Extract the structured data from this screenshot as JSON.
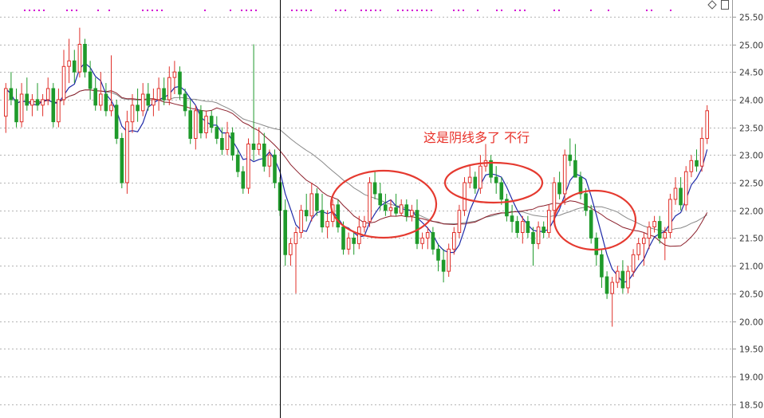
{
  "colors": {
    "up": "#e0302a",
    "down": "#1f9a2b",
    "ma_short": "#1f2aa8",
    "ma_mid": "#8b1e2a",
    "ma_long": "#888888",
    "grid": "#b4b4b4",
    "dots": "#d400d4",
    "circle": "#e53a30",
    "crosshair": "#000000"
  },
  "annotation": {
    "text": "这是阴线多了  不行"
  },
  "icons": {
    "top_right": [
      "diamond-icon",
      "page-icon"
    ]
  },
  "chart_data": {
    "type": "candlestick",
    "title": "",
    "ylim": [
      18.25,
      25.8
    ],
    "y_ticks": [
      "25.50",
      "25.00",
      "24.50",
      "24.00",
      "23.50",
      "23.00",
      "22.50",
      "22.00",
      "21.50",
      "21.00",
      "20.50",
      "20.00",
      "19.50",
      "19.00",
      "18.50"
    ],
    "grid": "dotted-horizontal",
    "crosshair_index": 52,
    "candles": [
      [
        23.7,
        24.3,
        23.4,
        24.2
      ],
      [
        24.2,
        24.5,
        23.9,
        24.0
      ],
      [
        24.0,
        24.2,
        23.5,
        23.6
      ],
      [
        23.6,
        24.3,
        23.5,
        24.1
      ],
      [
        24.1,
        24.4,
        23.8,
        23.9
      ],
      [
        23.9,
        24.1,
        23.7,
        24.0
      ],
      [
        24.0,
        24.3,
        23.8,
        23.9
      ],
      [
        23.9,
        24.1,
        23.7,
        24.0
      ],
      [
        24.0,
        24.4,
        23.9,
        24.2
      ],
      [
        24.2,
        24.3,
        23.5,
        23.6
      ],
      [
        23.6,
        24.2,
        23.5,
        24.0
      ],
      [
        24.0,
        24.9,
        23.9,
        24.6
      ],
      [
        24.6,
        25.1,
        24.3,
        24.7
      ],
      [
        24.7,
        24.9,
        24.3,
        24.5
      ],
      [
        24.5,
        25.3,
        24.4,
        25.0
      ],
      [
        25.0,
        25.1,
        24.4,
        24.5
      ],
      [
        24.5,
        24.7,
        24.0,
        24.2
      ],
      [
        24.2,
        24.4,
        23.8,
        23.9
      ],
      [
        23.9,
        24.5,
        23.8,
        24.1
      ],
      [
        24.1,
        24.3,
        23.7,
        23.8
      ],
      [
        23.8,
        24.8,
        23.7,
        23.9
      ],
      [
        23.9,
        24.0,
        23.2,
        23.3
      ],
      [
        23.3,
        23.4,
        22.4,
        22.5
      ],
      [
        22.5,
        23.8,
        22.3,
        23.6
      ],
      [
        23.6,
        24.1,
        23.4,
        23.9
      ],
      [
        23.9,
        24.2,
        23.6,
        23.8
      ],
      [
        23.8,
        24.3,
        23.7,
        24.1
      ],
      [
        24.1,
        24.3,
        23.8,
        23.9
      ],
      [
        23.9,
        24.2,
        23.7,
        24.0
      ],
      [
        24.0,
        24.4,
        23.8,
        24.2
      ],
      [
        24.2,
        24.4,
        23.9,
        24.0
      ],
      [
        24.0,
        24.6,
        23.9,
        24.4
      ],
      [
        24.4,
        24.7,
        24.1,
        24.5
      ],
      [
        24.5,
        24.6,
        24.0,
        24.1
      ],
      [
        24.1,
        24.2,
        23.7,
        23.8
      ],
      [
        23.8,
        24.0,
        23.2,
        23.3
      ],
      [
        23.3,
        23.9,
        23.1,
        23.8
      ],
      [
        23.8,
        23.9,
        23.3,
        23.4
      ],
      [
        23.4,
        23.8,
        23.3,
        23.7
      ],
      [
        23.7,
        23.8,
        23.4,
        23.5
      ],
      [
        23.5,
        23.7,
        23.2,
        23.3
      ],
      [
        23.3,
        23.5,
        23.0,
        23.1
      ],
      [
        23.1,
        23.6,
        23.0,
        23.4
      ],
      [
        23.4,
        23.5,
        22.9,
        23.0
      ],
      [
        23.0,
        23.1,
        22.6,
        22.7
      ],
      [
        22.7,
        22.8,
        22.3,
        22.4
      ],
      [
        22.4,
        23.3,
        22.3,
        23.2
      ],
      [
        23.2,
        25.0,
        22.9,
        23.1
      ],
      [
        23.1,
        23.5,
        23.0,
        23.2
      ],
      [
        23.2,
        23.4,
        22.7,
        22.8
      ],
      [
        22.8,
        23.1,
        22.6,
        23.0
      ],
      [
        23.0,
        23.1,
        22.4,
        22.5
      ],
      [
        22.5,
        22.6,
        21.9,
        22.0
      ],
      [
        22.0,
        22.2,
        21.0,
        21.2
      ],
      [
        21.2,
        21.5,
        21.0,
        21.4
      ],
      [
        21.4,
        21.7,
        20.5,
        21.6
      ],
      [
        21.6,
        22.1,
        21.5,
        22.0
      ],
      [
        22.0,
        22.3,
        21.8,
        21.9
      ],
      [
        21.9,
        22.5,
        21.8,
        22.3
      ],
      [
        22.3,
        22.4,
        21.9,
        22.0
      ],
      [
        22.0,
        22.3,
        21.6,
        21.7
      ],
      [
        21.7,
        22.0,
        21.5,
        21.8
      ],
      [
        21.8,
        22.2,
        21.7,
        22.1
      ],
      [
        22.1,
        22.2,
        21.6,
        21.7
      ],
      [
        21.7,
        21.8,
        21.2,
        21.3
      ],
      [
        21.3,
        21.6,
        21.2,
        21.5
      ],
      [
        21.5,
        21.6,
        21.2,
        21.4
      ],
      [
        21.4,
        21.9,
        21.3,
        21.7
      ],
      [
        21.7,
        21.9,
        21.6,
        21.8
      ],
      [
        21.8,
        22.6,
        21.7,
        22.5
      ],
      [
        22.5,
        22.7,
        22.2,
        22.3
      ],
      [
        22.3,
        22.5,
        22.0,
        22.1
      ],
      [
        22.1,
        22.3,
        21.9,
        22.0
      ],
      [
        22.0,
        22.2,
        21.9,
        22.05
      ],
      [
        22.05,
        22.3,
        21.9,
        21.95
      ],
      [
        21.95,
        22.2,
        21.9,
        22.1
      ],
      [
        22.1,
        22.2,
        21.8,
        21.9
      ],
      [
        21.9,
        22.1,
        21.8,
        22.0
      ],
      [
        22.0,
        22.2,
        21.3,
        21.4
      ],
      [
        21.4,
        21.6,
        21.3,
        21.5
      ],
      [
        21.5,
        21.7,
        21.3,
        21.6
      ],
      [
        21.6,
        21.7,
        21.2,
        21.3
      ],
      [
        21.3,
        21.4,
        20.9,
        21.1
      ],
      [
        21.1,
        21.3,
        20.7,
        20.9
      ],
      [
        20.9,
        21.4,
        20.8,
        21.3
      ],
      [
        21.3,
        21.7,
        21.2,
        21.6
      ],
      [
        21.6,
        22.1,
        21.5,
        22.0
      ],
      [
        22.0,
        22.6,
        21.9,
        22.5
      ],
      [
        22.5,
        22.8,
        22.4,
        22.6
      ],
      [
        22.6,
        22.7,
        22.3,
        22.4
      ],
      [
        22.4,
        23.0,
        22.3,
        22.8
      ],
      [
        22.8,
        23.2,
        22.7,
        22.9
      ],
      [
        22.9,
        23.0,
        22.5,
        22.6
      ],
      [
        22.6,
        22.8,
        22.3,
        22.5
      ],
      [
        22.5,
        22.6,
        22.1,
        22.2
      ],
      [
        22.2,
        22.3,
        21.8,
        21.9
      ],
      [
        21.9,
        22.1,
        21.6,
        21.8
      ],
      [
        21.8,
        21.9,
        21.5,
        21.6
      ],
      [
        21.6,
        21.9,
        21.4,
        21.8
      ],
      [
        21.8,
        21.9,
        21.5,
        21.6
      ],
      [
        21.6,
        21.7,
        21.0,
        21.4
      ],
      [
        21.4,
        21.8,
        21.3,
        21.7
      ],
      [
        21.7,
        21.8,
        21.5,
        21.6
      ],
      [
        21.6,
        22.1,
        21.5,
        22.0
      ],
      [
        22.0,
        22.6,
        21.9,
        22.5
      ],
      [
        22.5,
        22.7,
        22.2,
        22.3
      ],
      [
        22.3,
        23.1,
        22.1,
        23.0
      ],
      [
        23.0,
        23.3,
        22.8,
        22.9
      ],
      [
        22.9,
        23.2,
        22.6,
        22.6
      ],
      [
        22.6,
        22.7,
        22.2,
        22.3
      ],
      [
        22.3,
        22.4,
        21.9,
        22.0
      ],
      [
        22.0,
        22.1,
        21.4,
        21.5
      ],
      [
        21.5,
        21.6,
        21.0,
        21.2
      ],
      [
        21.2,
        21.3,
        20.6,
        20.8
      ],
      [
        20.8,
        20.9,
        20.4,
        20.5
      ],
      [
        20.5,
        20.8,
        19.9,
        20.7
      ],
      [
        20.7,
        21.0,
        20.6,
        20.9
      ],
      [
        20.9,
        21.1,
        20.5,
        20.6
      ],
      [
        20.6,
        21.0,
        20.5,
        20.9
      ],
      [
        20.9,
        21.3,
        20.8,
        21.2
      ],
      [
        21.2,
        21.5,
        21.1,
        21.4
      ],
      [
        21.4,
        21.6,
        21.0,
        21.5
      ],
      [
        21.5,
        21.8,
        21.3,
        21.7
      ],
      [
        21.7,
        21.9,
        21.6,
        21.8
      ],
      [
        21.8,
        21.9,
        21.4,
        21.5
      ],
      [
        21.5,
        21.7,
        21.1,
        21.6
      ],
      [
        21.6,
        22.3,
        21.5,
        22.2
      ],
      [
        22.2,
        22.6,
        22.1,
        22.4
      ],
      [
        22.4,
        22.6,
        22.0,
        22.1
      ],
      [
        22.1,
        22.8,
        22.0,
        22.7
      ],
      [
        22.7,
        23.0,
        22.6,
        22.9
      ],
      [
        22.9,
        23.1,
        22.7,
        22.8
      ],
      [
        22.8,
        23.5,
        22.7,
        23.3
      ],
      [
        23.3,
        23.9,
        23.2,
        23.8
      ]
    ]
  }
}
